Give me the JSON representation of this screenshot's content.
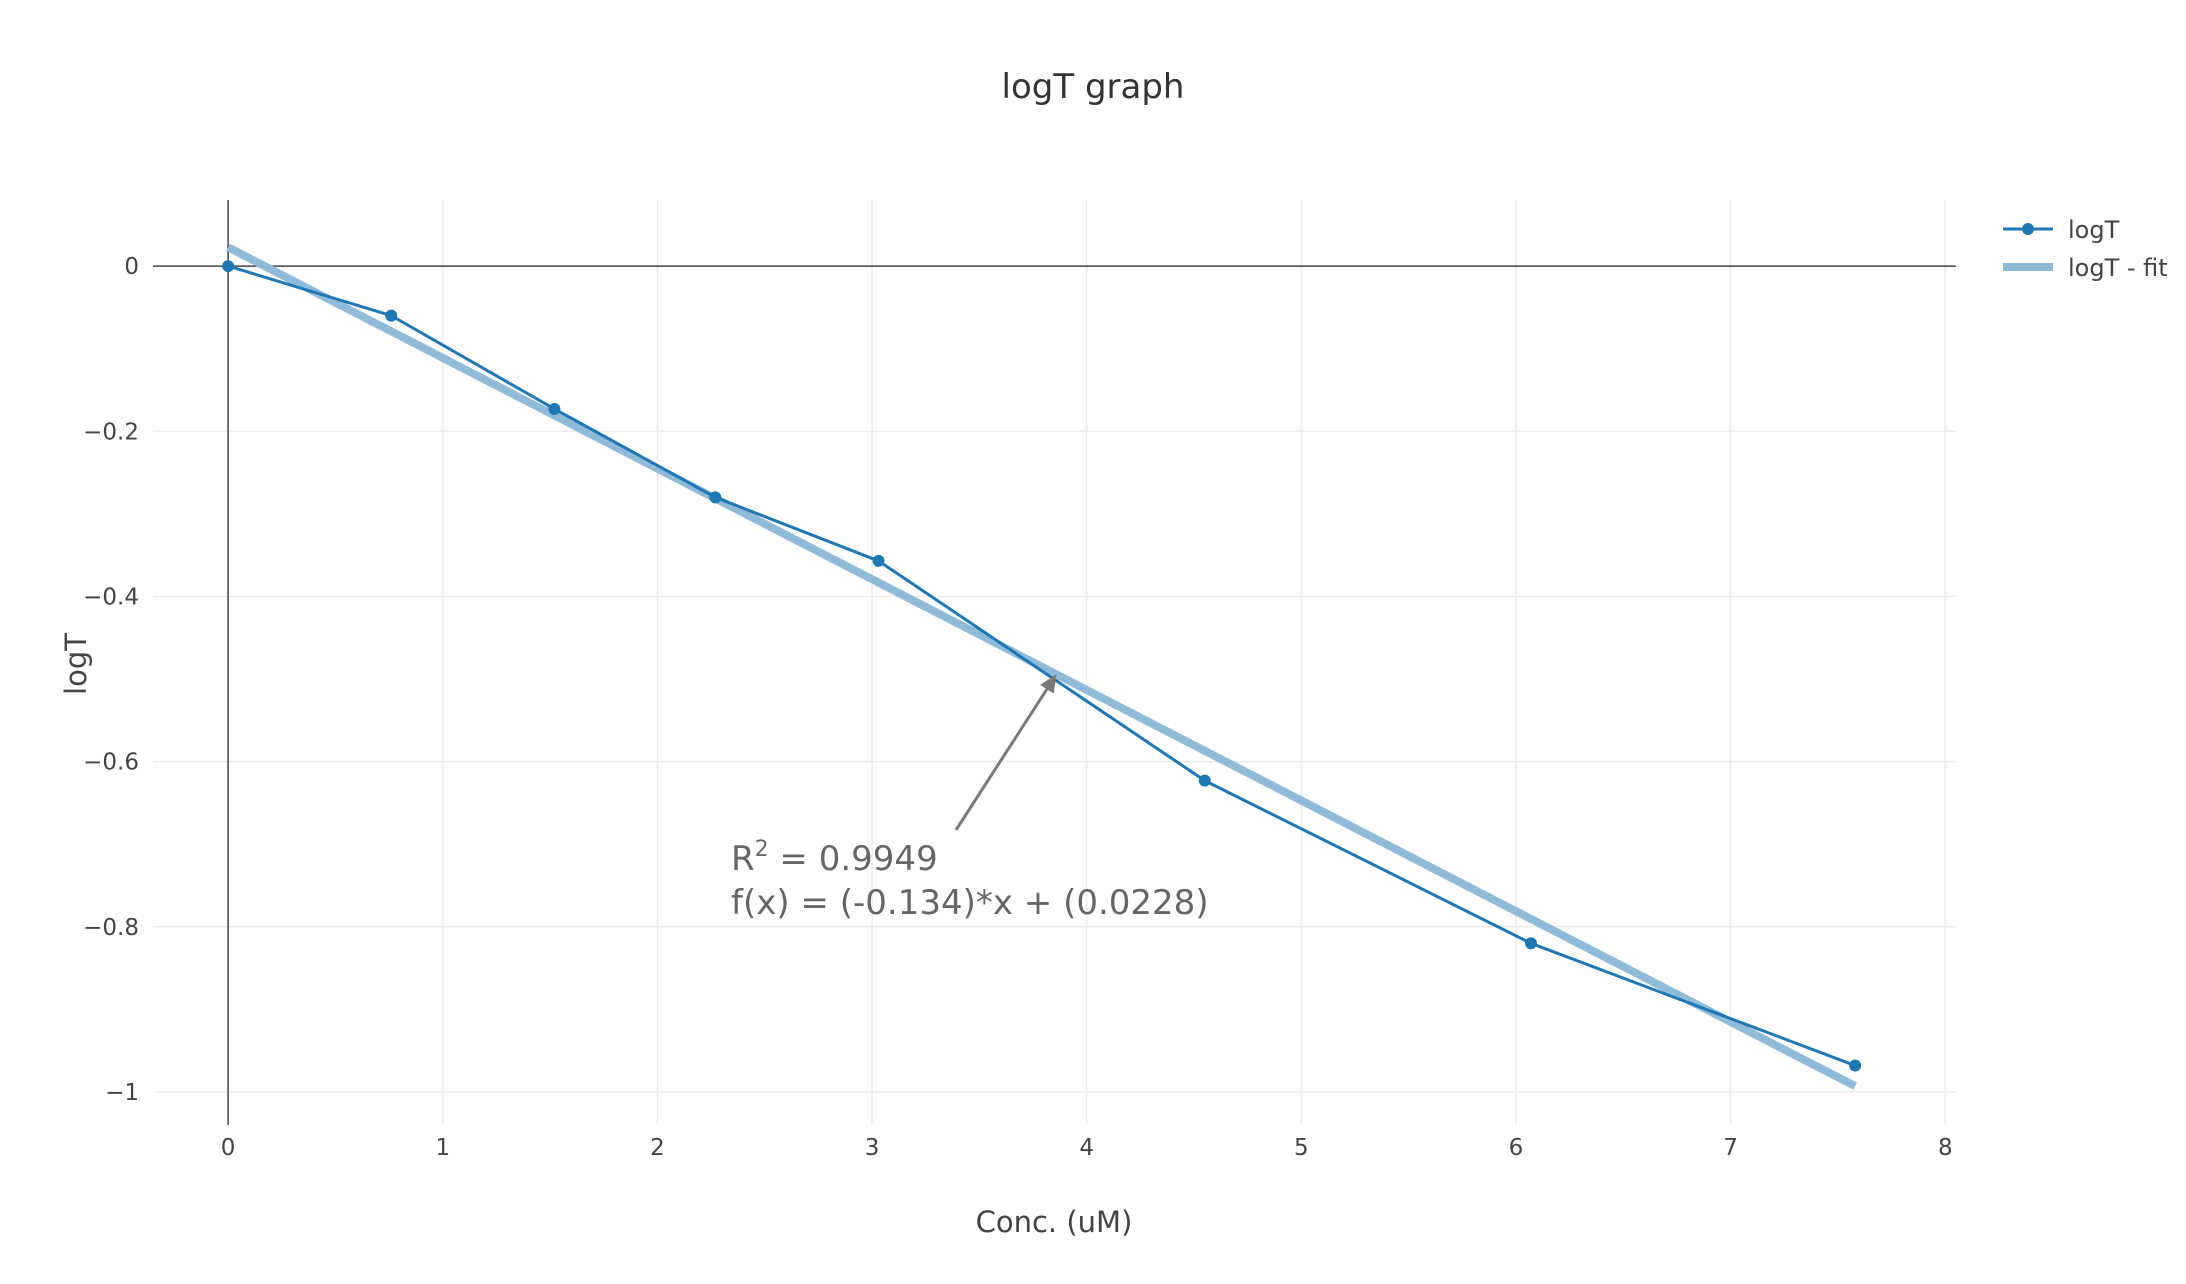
{
  "chart_data": {
    "type": "line",
    "title": "logT graph",
    "xlabel": "Conc. (uM)",
    "ylabel": "logT",
    "xlim": [
      -0.35,
      8.05
    ],
    "ylim": [
      -1.04,
      0.08
    ],
    "x_ticks": [
      0,
      1,
      2,
      3,
      4,
      5,
      6,
      7,
      8
    ],
    "y_ticks": [
      0,
      -0.2,
      -0.4,
      -0.6,
      -0.8,
      -1
    ],
    "x_tick_labels": [
      "0",
      "1",
      "2",
      "3",
      "4",
      "5",
      "6",
      "7",
      "8"
    ],
    "y_tick_labels": [
      "0",
      "−0.2",
      "−0.4",
      "−0.6",
      "−0.8",
      "−1"
    ],
    "grid": true,
    "legend_position": "top-right",
    "series": [
      {
        "name": "logT",
        "color": "#1f77b4",
        "mode": "lines+markers",
        "x": [
          0,
          0.76,
          1.52,
          2.27,
          3.03,
          4.55,
          6.07,
          7.58
        ],
        "y": [
          0,
          -0.06,
          -0.173,
          -0.28,
          -0.357,
          -0.623,
          -0.82,
          -0.968
        ]
      },
      {
        "name": "logT - fit",
        "color": "#8fbbd9",
        "mode": "lines",
        "x": [
          0,
          7.58
        ],
        "y": [
          0.0228,
          -0.9929
        ]
      }
    ],
    "annotation": {
      "r2_prefix": "R",
      "r2_sup": "2",
      "r2_value": " = 0.9949",
      "equation": "f(x) = (-0.134)*x + (0.0228)",
      "arrow_target": [
        3.86,
        -0.494
      ],
      "color": "#666666"
    }
  }
}
